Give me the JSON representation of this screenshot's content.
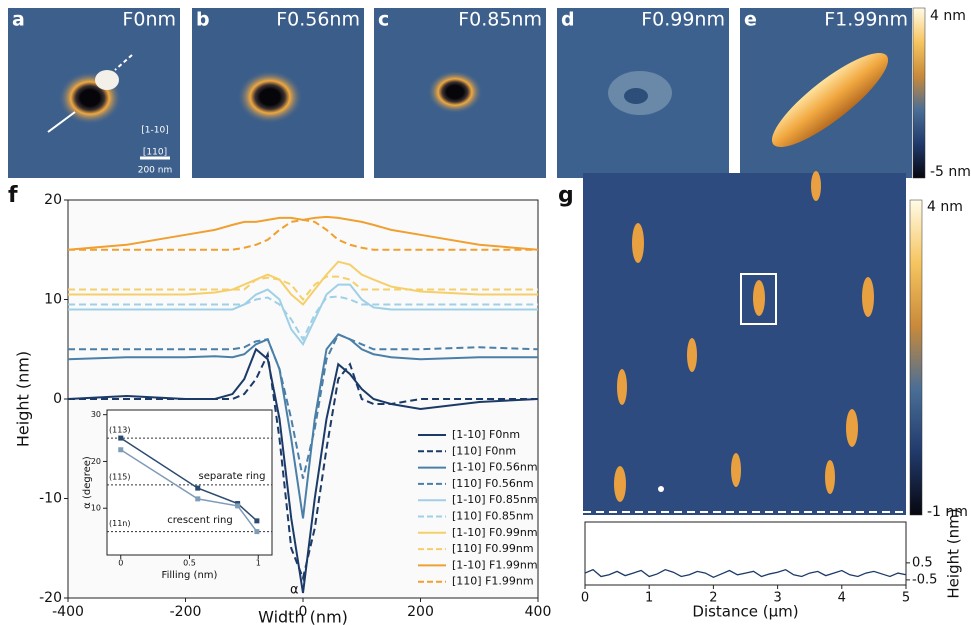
{
  "panels": [
    {
      "letter": "a",
      "label": "F0nm"
    },
    {
      "letter": "b",
      "label": "F0.56nm"
    },
    {
      "letter": "c",
      "label": "F0.85nm"
    },
    {
      "letter": "d",
      "label": "F0.99nm"
    },
    {
      "letter": "e",
      "label": "F1.99nm"
    }
  ],
  "panel_a_notes": {
    "dir1": "[1-10]",
    "dir2": "[110]",
    "scale": "200 nm"
  },
  "colorbar_top": {
    "max": "4 nm",
    "min": "-5 nm"
  },
  "panel_f_letter": "f",
  "panel_g": {
    "letter": "g",
    "colorbar_max": "4 nm",
    "colorbar_min": "-1 nm"
  },
  "chart_data": [
    {
      "type": "line",
      "xlabel": "Width (nm)",
      "ylabel": "Height (nm)",
      "annotation": "α",
      "xlim": [
        -400,
        400
      ],
      "ylim": [
        -20,
        20
      ],
      "xticks": [
        -400,
        -200,
        0,
        200,
        400
      ],
      "yticks": [
        -20,
        -10,
        0,
        10,
        20
      ],
      "x": [
        -400,
        -300,
        -200,
        -150,
        -120,
        -100,
        -80,
        -60,
        -40,
        -20,
        0,
        20,
        40,
        60,
        80,
        100,
        120,
        150,
        200,
        300,
        400
      ],
      "series": [
        {
          "name": "[1-10] F0nm",
          "color": "#1c3a68",
          "linestyle": "solid",
          "values": [
            0,
            0.3,
            0,
            0,
            0.5,
            2,
            5,
            4,
            -2,
            -12,
            -19.5,
            -10,
            -2,
            3.5,
            2.5,
            1,
            0,
            -0.5,
            -1,
            -0.3,
            0
          ]
        },
        {
          "name": "[110] F0nm",
          "color": "#1c3a68",
          "linestyle": "dashed",
          "values": [
            0,
            0,
            0,
            0,
            0,
            0.5,
            2,
            4.5,
            -4,
            -15,
            -18,
            -13,
            -5,
            2,
            3.5,
            0,
            -0.5,
            -0.5,
            0,
            0,
            0
          ]
        },
        {
          "name": "[1-10] F0.56nm",
          "color": "#4a7fa8",
          "linestyle": "solid",
          "values": [
            4,
            4.2,
            4.2,
            4.3,
            4.2,
            4.5,
            5.5,
            6,
            3,
            -4,
            -12,
            -2,
            5,
            6.5,
            6,
            5,
            4.5,
            4.2,
            4,
            4.2,
            4.2
          ]
        },
        {
          "name": "[110] F0.56nm",
          "color": "#4a7fa8",
          "linestyle": "dashed",
          "values": [
            5,
            5,
            5,
            5,
            5,
            5.2,
            5.8,
            6,
            3,
            -2,
            -8,
            -3,
            4,
            6.5,
            6,
            5.5,
            5,
            5,
            5,
            5.2,
            5
          ]
        },
        {
          "name": "[1-10] F0.85nm",
          "color": "#9fd0e6",
          "linestyle": "solid",
          "values": [
            9,
            9,
            9,
            9,
            9,
            9.5,
            10.5,
            11,
            10,
            7,
            5.5,
            8,
            10.5,
            11.5,
            11.5,
            10,
            9.2,
            9,
            9,
            9,
            9
          ]
        },
        {
          "name": "[110] F0.85nm",
          "color": "#9fd0e6",
          "linestyle": "dashed",
          "values": [
            9.5,
            9.5,
            9.5,
            9.5,
            9.5,
            9.5,
            10,
            10.2,
            9.5,
            8,
            6,
            8.5,
            10.2,
            10.3,
            10,
            9.5,
            9.5,
            9.5,
            9.5,
            9.5,
            9.5
          ]
        },
        {
          "name": "[1-10] F0.99nm",
          "color": "#f5cf6a",
          "linestyle": "solid",
          "values": [
            10.5,
            10.5,
            10.5,
            10.7,
            11,
            11.5,
            12,
            12.5,
            12,
            10.5,
            9.5,
            11,
            12.5,
            13.8,
            13.5,
            12.5,
            12,
            11.3,
            10.8,
            10.5,
            10.5
          ]
        },
        {
          "name": "[110] F0.99nm",
          "color": "#f5cf6a",
          "linestyle": "dashed",
          "values": [
            11,
            11,
            11,
            11,
            11,
            11,
            12,
            12.2,
            12,
            11.5,
            10,
            11.5,
            12.3,
            12.3,
            12,
            11,
            11,
            11,
            11,
            11,
            11
          ]
        },
        {
          "name": "[1-10] F1.99nm",
          "color": "#f0a030",
          "linestyle": "solid",
          "values": [
            15,
            15.5,
            16.5,
            17,
            17.5,
            17.8,
            17.8,
            18,
            18.2,
            18.2,
            18,
            18.2,
            18.3,
            18.2,
            18,
            17.8,
            17.5,
            17,
            16.5,
            15.5,
            15
          ]
        },
        {
          "name": "[110] F1.99nm",
          "color": "#f0a030",
          "linestyle": "dashed",
          "values": [
            15,
            15,
            15,
            15,
            15,
            15.2,
            15.5,
            16,
            17,
            17.8,
            18,
            17.8,
            17,
            16,
            15.5,
            15.2,
            15,
            15,
            15,
            15,
            15
          ]
        }
      ]
    },
    {
      "type": "line",
      "xlabel": "Filling (nm)",
      "ylabel": "α (degree)",
      "xlim": [
        -0.1,
        1.1
      ],
      "ylim": [
        0,
        31
      ],
      "xticks": [
        0,
        0.5,
        1
      ],
      "yticks": [
        10,
        20,
        30
      ],
      "reference_lines": [
        {
          "value": 25,
          "label": "(113)"
        },
        {
          "value": 15,
          "label": "(115)"
        },
        {
          "value": 5,
          "label": "(11n)"
        }
      ],
      "annotations": [
        "separate ring",
        "crescent ring"
      ],
      "x": [
        0,
        0.56,
        0.85,
        0.99
      ],
      "series": [
        {
          "color": "#2a4a70",
          "values": [
            25,
            14.3,
            11,
            7.3
          ]
        },
        {
          "color": "#7e9cb8",
          "values": [
            22.5,
            12,
            10.5,
            5
          ]
        }
      ]
    },
    {
      "type": "line",
      "xlabel": "Distance (μm)",
      "ylabel": "Height (nm)",
      "xlim": [
        0,
        5
      ],
      "ylim": [
        -0.8,
        2.9
      ],
      "xticks": [
        0,
        1,
        2,
        3,
        4,
        5
      ],
      "yticks": [
        -0.5,
        0.5
      ],
      "x": [
        0,
        0.125,
        0.25,
        0.375,
        0.5,
        0.625,
        0.75,
        0.875,
        1,
        1.125,
        1.25,
        1.375,
        1.5,
        1.625,
        1.75,
        1.875,
        2,
        2.125,
        2.25,
        2.375,
        2.5,
        2.625,
        2.75,
        2.875,
        3,
        3.125,
        3.25,
        3.375,
        3.5,
        3.625,
        3.75,
        3.875,
        4,
        4.125,
        4.25,
        4.375,
        4.5,
        4.625,
        4.75,
        4.875,
        5
      ],
      "series": [
        {
          "color": "#1c3a68",
          "values": [
            -0.1,
            0.1,
            -0.3,
            -0.2,
            0.0,
            -0.25,
            -0.1,
            0.05,
            -0.3,
            -0.15,
            0.1,
            -0.05,
            -0.3,
            -0.2,
            0.0,
            -0.1,
            -0.35,
            -0.15,
            0.05,
            -0.2,
            -0.1,
            0.0,
            -0.3,
            -0.15,
            -0.05,
            0.1,
            -0.2,
            -0.3,
            -0.1,
            0.0,
            -0.25,
            -0.1,
            0.05,
            -0.2,
            -0.3,
            -0.1,
            0.0,
            -0.15,
            -0.3,
            -0.1,
            -0.2
          ]
        }
      ]
    }
  ]
}
